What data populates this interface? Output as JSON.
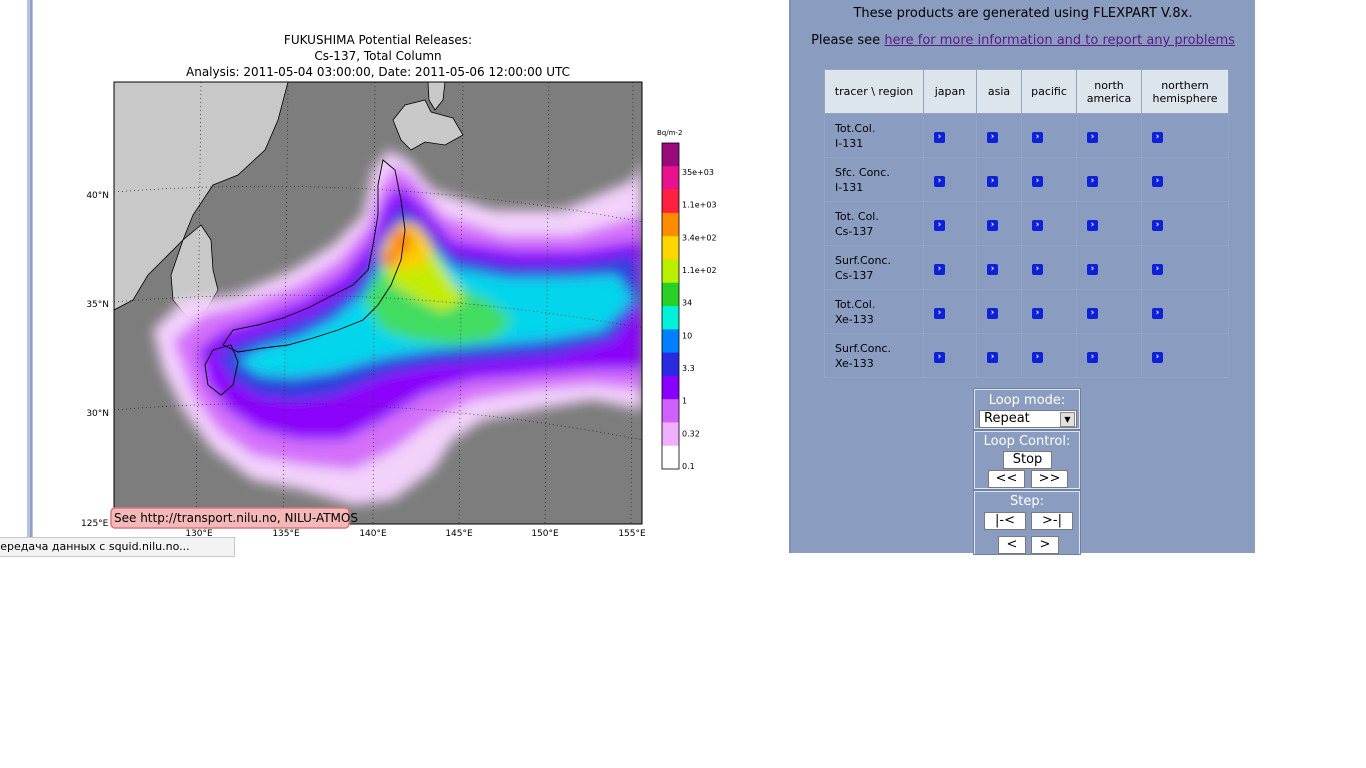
{
  "map": {
    "title_line1": "FUKUSHIMA Potential Releases:",
    "title_line2": "Cs-137, Total Column",
    "title_line3": "Analysis: 2011-05-04  03:00:00, Date: 2011-05-06  12:00:00 UTC",
    "lat_labels": [
      "40°N",
      "35°N",
      "30°N"
    ],
    "lon_labels": [
      "130°E",
      "135°E",
      "140°E",
      "145°E",
      "150°E",
      "155°E"
    ],
    "corner_label": "125°E",
    "credit": "See http://transport.nilu.no, NILU-ATMOS",
    "colorbar": {
      "unit": "Bq/m-2",
      "levels": [
        "35e+03",
        "1.1e+03",
        "3.4e+02",
        "1.1e+02",
        "34",
        "10",
        "3.3",
        "1",
        "0.32",
        "0.1"
      ],
      "colors": [
        "#9b0a7a",
        "#e8128f",
        "#ff2040",
        "#ff8c00",
        "#ffd600",
        "#b8f000",
        "#28d028",
        "#00f0d8",
        "#0080ff",
        "#2a2ae0",
        "#8a00ff",
        "#d060ff",
        "#f0b0ff",
        "#ffffff"
      ]
    }
  },
  "status_bar": "Передача данных с squid.nilu.no...",
  "info": {
    "line1": "These products are generated using FLEXPART V.8x.",
    "line2_prefix": "Please see ",
    "line2_link": "here for more information and to report any problems"
  },
  "table": {
    "header_corner": "tracer \\ region",
    "regions": [
      [
        "japan",
        ""
      ],
      [
        "asia",
        ""
      ],
      [
        "pacific",
        ""
      ],
      [
        "north",
        "america"
      ],
      [
        "northern",
        "hemisphere"
      ]
    ],
    "rows": [
      [
        "Tot.Col.",
        "I-131"
      ],
      [
        "Sfc. Conc.",
        "I-131"
      ],
      [
        "Tot. Col.",
        "Cs-137"
      ],
      [
        "Surf.Conc.",
        "Cs-137"
      ],
      [
        "Tot.Col.",
        "Xe-133"
      ],
      [
        "Surf.Conc.",
        "Xe-133"
      ]
    ],
    "go_icon": "arrow-right-icon"
  },
  "controls": {
    "loop_mode_label": "Loop mode:",
    "loop_mode_value": "Repeat",
    "loop_control_label": "Loop Control:",
    "stop": "Stop",
    "rewind": "<<",
    "forward": ">>",
    "step_label": "Step:",
    "first": "|-<",
    "last": ">-|",
    "prev": "<",
    "next": ">"
  }
}
